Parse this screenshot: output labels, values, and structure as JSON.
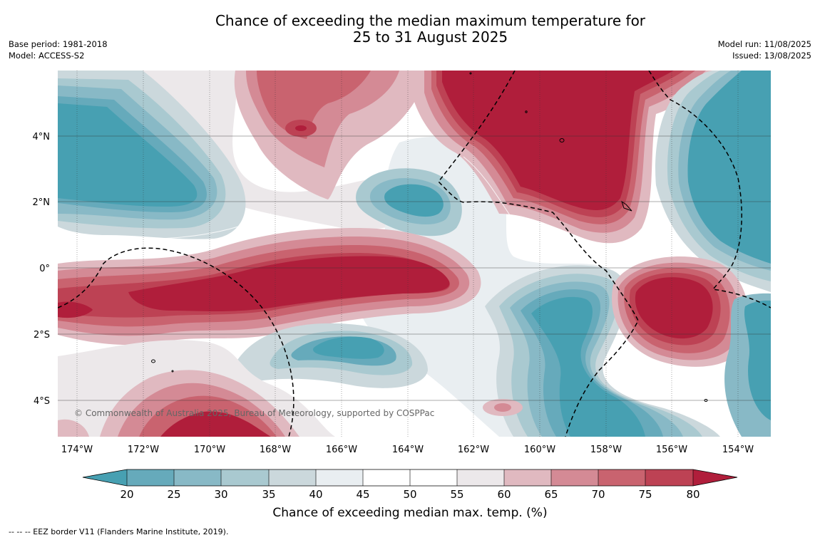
{
  "title_line1": "Chance of exceeding the median maximum temperature for",
  "title_line2": "25 to 31 August 2025",
  "base_period": "Base period: 1981-2018",
  "model": "Model: ACCESS-S2",
  "model_run": "Model run: 11/08/2025",
  "issued": "Issued: 13/08/2025",
  "lat_labels": [
    "4°N",
    "2°N",
    "0°",
    "2°S",
    "4°S"
  ],
  "lon_labels": [
    "174°W",
    "172°W",
    "170°W",
    "168°W",
    "166°W",
    "164°W",
    "162°W",
    "160°W",
    "158°W",
    "156°W",
    "154°W"
  ],
  "credit": "© Commonwealth of Australia 2025, Bureau of Meteorology, supported by COSPPac",
  "colorbar": {
    "ticks": [
      "20",
      "25",
      "30",
      "35",
      "40",
      "45",
      "50",
      "55",
      "60",
      "65",
      "70",
      "75",
      "80"
    ],
    "label": "Chance of exceeding median max. temp. (%)",
    "colors": {
      "below_20": "#47a0b2",
      "20_25": "#66aabb",
      "25_30": "#88b9c6",
      "30_35": "#a9c9d0",
      "35_40": "#cbd8dc",
      "40_45": "#e9eef1",
      "45_50": "#ffffff",
      "50_55": "#ffffff",
      "55_60": "#ece8ea",
      "60_65": "#e0b9c0",
      "65_70": "#d48a95",
      "70_75": "#c9636f",
      "75_80": "#bd4254",
      "above_80": "#b01e3b"
    }
  },
  "eez_note": "--  --  -- EEZ border V11 (Flanders Marine Institute, 2019)."
}
